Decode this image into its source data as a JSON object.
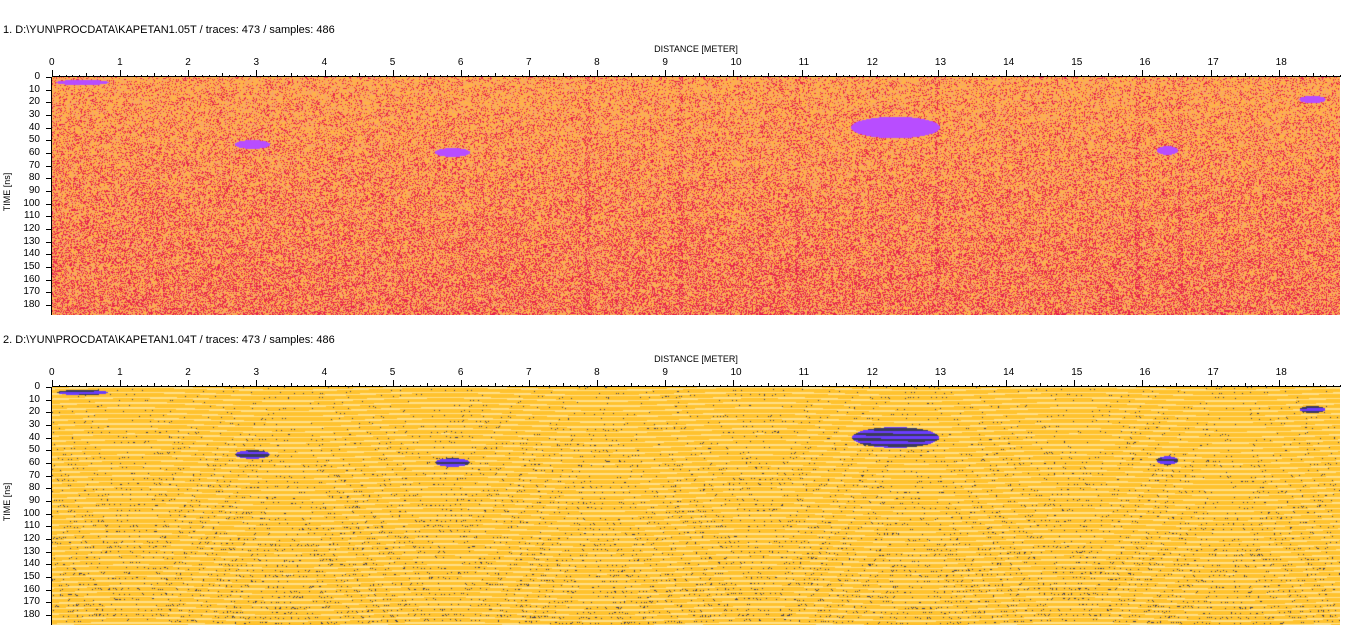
{
  "panels": [
    {
      "title": "1. D:\\YUN\\PROCDATA\\KAPETAN1.05T / traces: 473 / samples: 486",
      "x_axis_title": "DISTANCE [METER]",
      "y_axis_title": "TIME [ns]",
      "x_ticks": [
        "0",
        "1",
        "2",
        "3",
        "4",
        "5",
        "6",
        "7",
        "8",
        "9",
        "10",
        "11",
        "12",
        "13",
        "14",
        "15",
        "16",
        "17",
        "18"
      ],
      "y_ticks": [
        "0",
        "10",
        "20",
        "30",
        "40",
        "50",
        "60",
        "70",
        "80",
        "90",
        "100",
        "110",
        "120",
        "130",
        "140",
        "150",
        "160",
        "170",
        "180"
      ],
      "x_max_m": 18.9,
      "y_max_ns": 188,
      "colormap": "red-orange",
      "colors": {
        "background": "#f7a36b",
        "mid": "#ffb347",
        "strong": "#e8254a",
        "anomaly": "#b84dff"
      }
    },
    {
      "title": "2. D:\\YUN\\PROCDATA\\KAPETAN1.04T / traces: 473 / samples: 486",
      "x_axis_title": "DISTANCE [METER]",
      "y_axis_title": "TIME [ns]",
      "x_ticks": [
        "0",
        "1",
        "2",
        "3",
        "4",
        "5",
        "6",
        "7",
        "8",
        "9",
        "10",
        "11",
        "12",
        "13",
        "14",
        "15",
        "16",
        "17",
        "18"
      ],
      "y_ticks": [
        "0",
        "10",
        "20",
        "30",
        "40",
        "50",
        "60",
        "70",
        "80",
        "90",
        "100",
        "110",
        "120",
        "130",
        "140",
        "150",
        "160",
        "170",
        "180"
      ],
      "x_max_m": 18.9,
      "y_max_ns": 188,
      "colormap": "yellow-wiggle",
      "colors": {
        "background": "#ffc22e",
        "light": "#ffe08a",
        "dark": "#3a3a5a",
        "anomaly": "#6a3dff"
      }
    }
  ]
}
